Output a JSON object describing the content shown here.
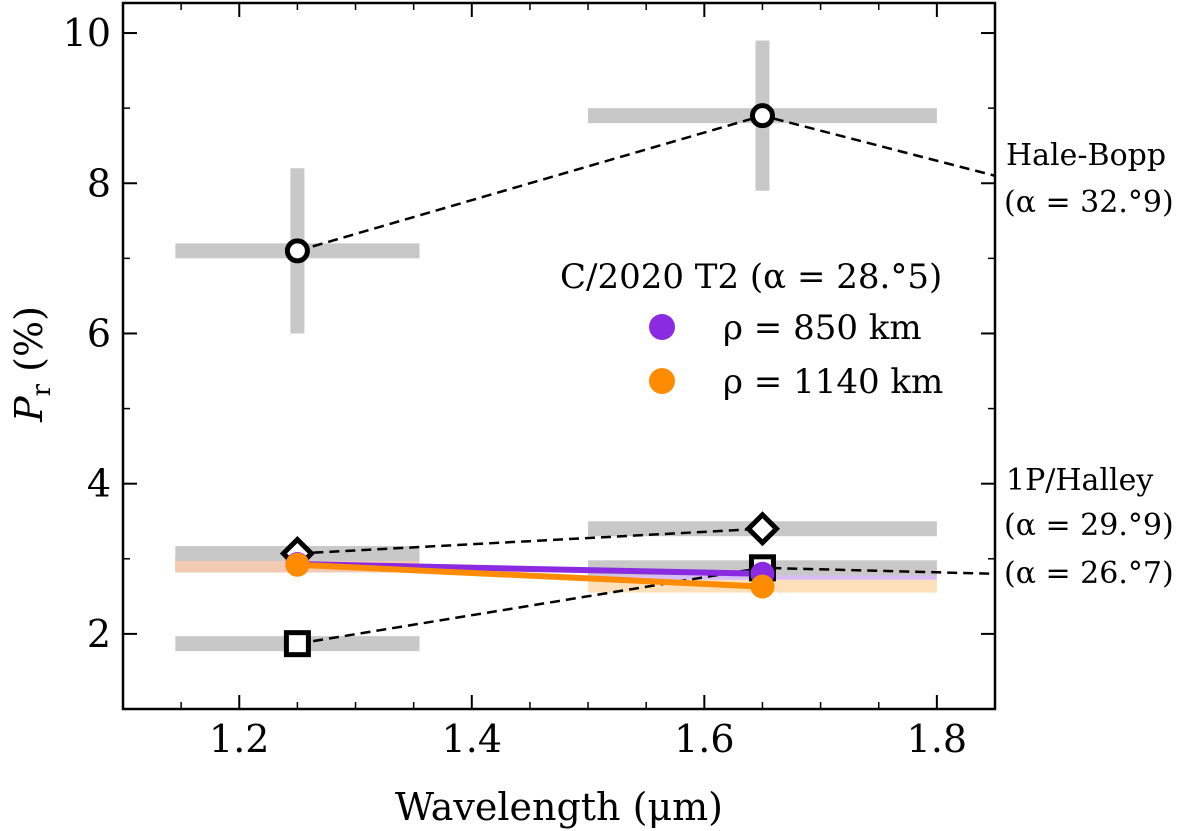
{
  "chart_data": {
    "type": "scatter",
    "xlabel": "Wavelength (μm)",
    "ylabel_main": "P",
    "ylabel_sub": "r",
    "ylabel_rest": " (%)",
    "xlim": [
      1.1,
      1.85
    ],
    "ylim": [
      1.0,
      10.4
    ],
    "xticks": [
      {
        "value": 1.2,
        "label": "1.2"
      },
      {
        "value": 1.4,
        "label": "1.4"
      },
      {
        "value": 1.6,
        "label": "1.6"
      },
      {
        "value": 1.8,
        "label": "1.8"
      }
    ],
    "yticks": [
      {
        "value": 2,
        "label": "2"
      },
      {
        "value": 4,
        "label": "4"
      },
      {
        "value": 6,
        "label": "6"
      },
      {
        "value": 8,
        "label": "8"
      },
      {
        "value": 10,
        "label": "10"
      }
    ],
    "grid": false,
    "reference_comets": [
      {
        "marker": "circle",
        "points": [
          {
            "x": 1.25,
            "y": 7.1,
            "xerr": [
              1.145,
              1.355
            ],
            "yerr": [
              6.0,
              8.2
            ]
          },
          {
            "x": 1.65,
            "y": 8.9,
            "xerr": [
              1.5,
              1.8
            ],
            "yerr": [
              7.9,
              9.9
            ]
          }
        ],
        "line_extension": [
          1.85,
          8.1
        ]
      },
      {
        "marker": "diamond",
        "points": [
          {
            "x": 1.25,
            "y": 3.07,
            "xerr": [
              1.145,
              1.355
            ],
            "yerr": null
          },
          {
            "x": 1.65,
            "y": 3.4,
            "xerr": [
              1.5,
              1.8
            ],
            "yerr": null
          }
        ],
        "line_extension": null
      },
      {
        "marker": "square",
        "points": [
          {
            "x": 1.25,
            "y": 1.87,
            "xerr": [
              1.145,
              1.355
            ],
            "yerr": null
          },
          {
            "x": 1.65,
            "y": 2.88,
            "xerr": [
              1.5,
              1.8
            ],
            "yerr": [
              2.78,
              2.98
            ]
          }
        ],
        "line_extension": [
          1.85,
          2.8
        ]
      }
    ],
    "series": [
      {
        "name": "ρ = 850 km",
        "color": "#8a2be2",
        "band_color": "#c9a7f0",
        "points": [
          {
            "x": 1.25,
            "y": 2.93,
            "band": [
              1.145,
              1.355,
              2.82,
              3.04
            ]
          },
          {
            "x": 1.65,
            "y": 2.8,
            "band": [
              1.5,
              1.8,
              2.72,
              2.88
            ]
          }
        ]
      },
      {
        "name": "ρ = 1140 km",
        "color": "#ff8c00",
        "band_color": "#fcd5a3",
        "points": [
          {
            "x": 1.25,
            "y": 2.92,
            "band": [
              1.145,
              1.355,
              2.82,
              3.02
            ]
          },
          {
            "x": 1.65,
            "y": 2.63,
            "band": [
              1.5,
              1.8,
              2.55,
              2.72
            ]
          }
        ]
      }
    ],
    "legend": {
      "title": "C/2020 T2 (α = 28.°5)",
      "placement": "center-right",
      "entries": [
        "ρ = 850 km",
        "ρ = 1140 km"
      ]
    },
    "annotations": {
      "hale_bopp_name": "Hale-Bopp",
      "hale_bopp_alpha": "(α = 32.°9)",
      "halley_name": "1P/Halley",
      "halley_alpha_1": "(α = 29.°9)",
      "halley_alpha_2": "(α = 26.°7)"
    },
    "colors": {
      "errorbar": "#c8c8c8",
      "reference_line": "#000000",
      "halley_diamond_band": "#e6a3a3"
    }
  }
}
